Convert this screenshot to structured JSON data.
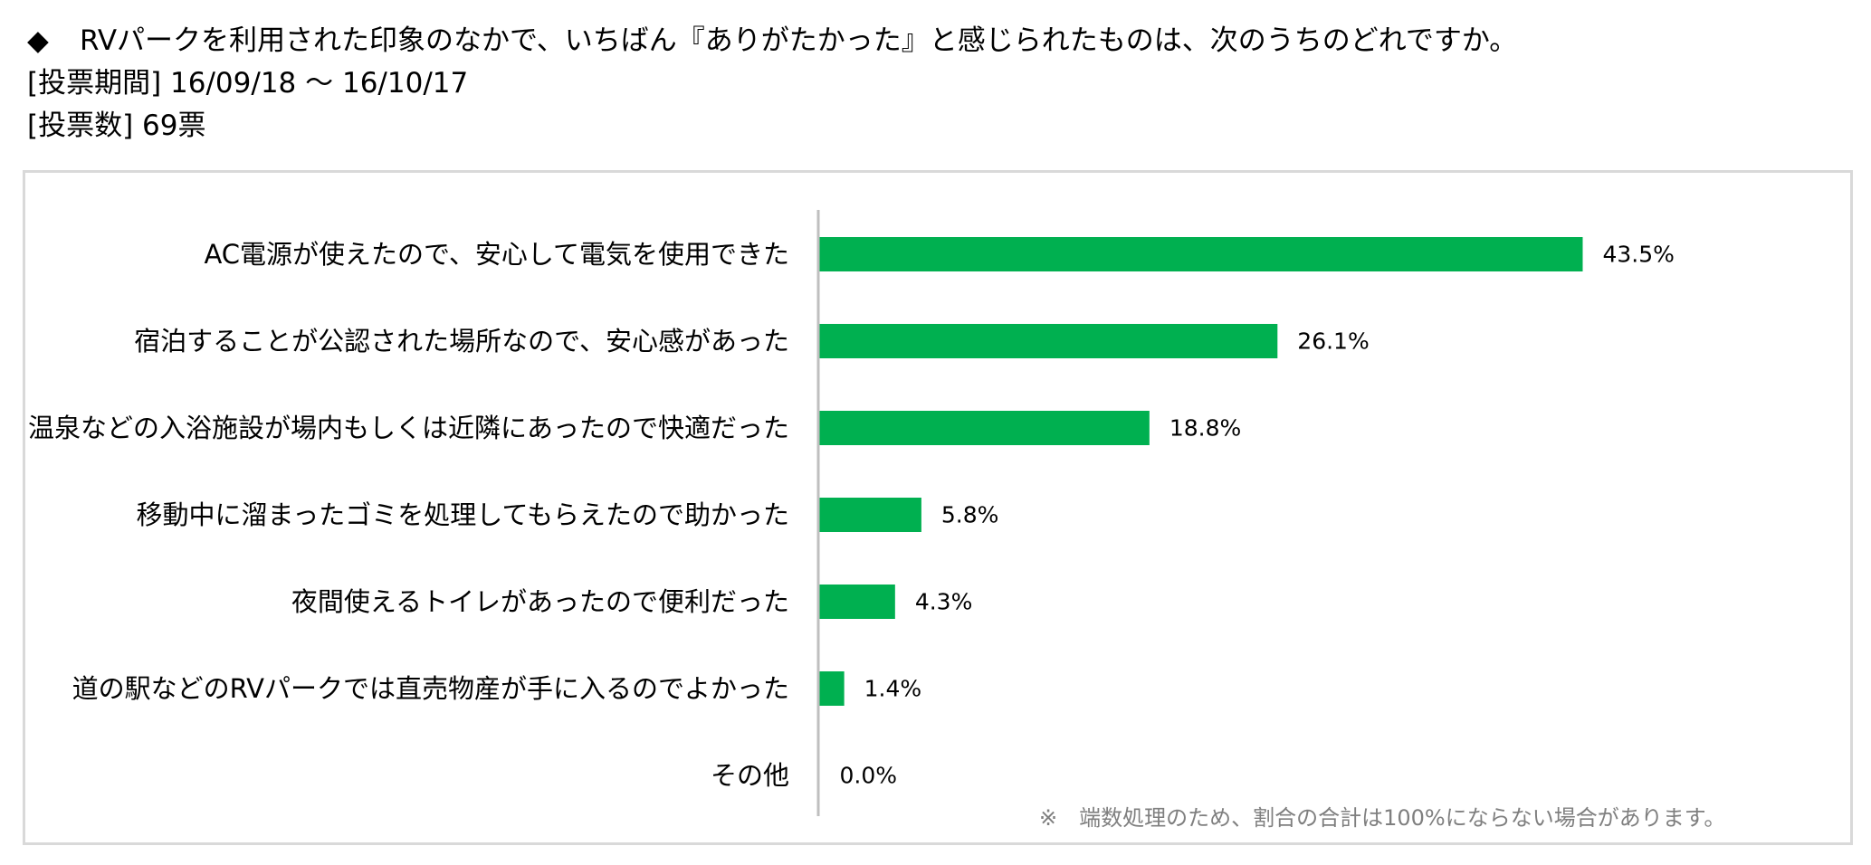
{
  "header": {
    "question_marker": "◆",
    "question": "RVパークを利用された印象のなかで、いちばん『ありがたかった』と感じられたものは、次のうちのどれですか。",
    "period": "[投票期間] 16/09/18 ～ 16/10/17",
    "votes": "[投票数] 69票"
  },
  "colors": {
    "bar": "#00b050",
    "axis": "#bfbfbf",
    "frame": "#d9d9d9",
    "footnote": "#7f7f7f"
  },
  "chart_data": {
    "type": "bar",
    "orientation": "horizontal",
    "categories": [
      "AC電源が使えたので、安心して電気を使用できた",
      "宿泊することが公認された場所なので、安心感があった",
      "温泉などの入浴施設が場内もしくは近隣にあったので快適だった",
      "移動中に溜まったゴミを処理してもらえたので助かった",
      "夜間使えるトイレがあったので便利だった",
      "道の駅などのRVパークでは直売物産が手に入るのでよかった",
      "その他"
    ],
    "values": [
      43.5,
      26.1,
      18.8,
      5.8,
      4.3,
      1.4,
      0.0
    ],
    "value_labels": [
      "43.5%",
      "26.1%",
      "18.8%",
      "5.8%",
      "4.3%",
      "1.4%",
      "0.0%"
    ],
    "unit": "%",
    "xlim": [
      0,
      50
    ],
    "grid": false,
    "legend": "none"
  },
  "footnote": "※　端数処理のため、割合の合計は100%にならない場合があります。"
}
